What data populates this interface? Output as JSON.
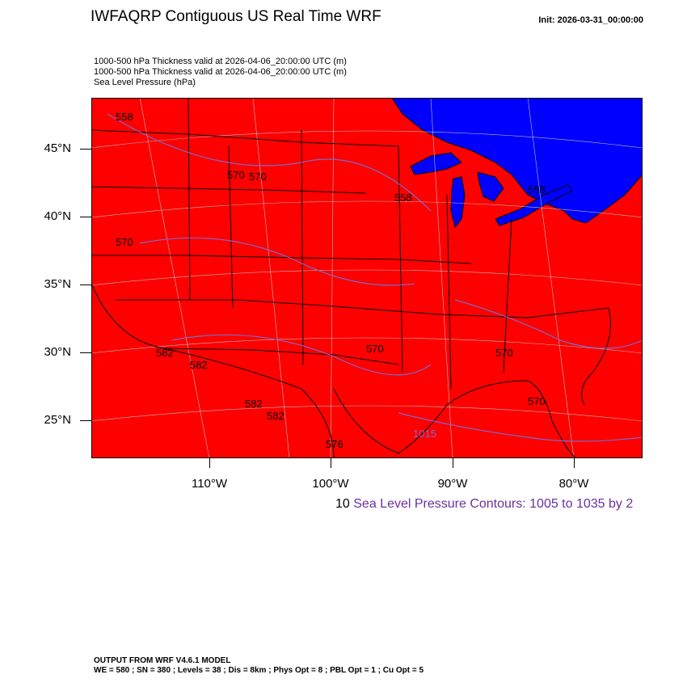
{
  "header": {
    "title": "IWFAQRP Contiguous US Real Time WRF",
    "init": "Init: 2026-03-31_00:00:00"
  },
  "subtitles": [
    "1000-500 hPa Thickness valid at 2026-04-06_20:00:00 UTC   (m)",
    "1000-500 hPa Thickness valid at 2026-04-06_20:00:00 UTC   (m)",
    "Sea Level Pressure   (hPa)"
  ],
  "map": {
    "fill_colors": {
      "land": "#ff0000",
      "lakes_ocean": "#0000ff",
      "borders": "#000000",
      "pressure_contours": "#7b68c8"
    },
    "lat_labels": [
      "45°N",
      "40°N",
      "35°N",
      "30°N",
      "25°N"
    ],
    "lon_labels": [
      "110°W",
      "100°W",
      "90°W",
      "80°W"
    ],
    "contour_labels": [
      "558",
      "570",
      "558",
      "570",
      "570",
      "558",
      "582",
      "582",
      "582",
      "570",
      "570",
      "576",
      "582",
      "570",
      "1015"
    ]
  },
  "legend": {
    "lead": "10",
    "slp_text": "Sea Level Pressure Contours: 1005 to 1035 by 2"
  },
  "footer": {
    "line1": "OUTPUT FROM WRF V4.6.1 MODEL",
    "line2": "WE = 580 ; SN = 380 ; Levels = 38 ; Dis = 8km ; Phys Opt = 8 ; PBL Opt = 1 ; Cu Opt = 5"
  }
}
